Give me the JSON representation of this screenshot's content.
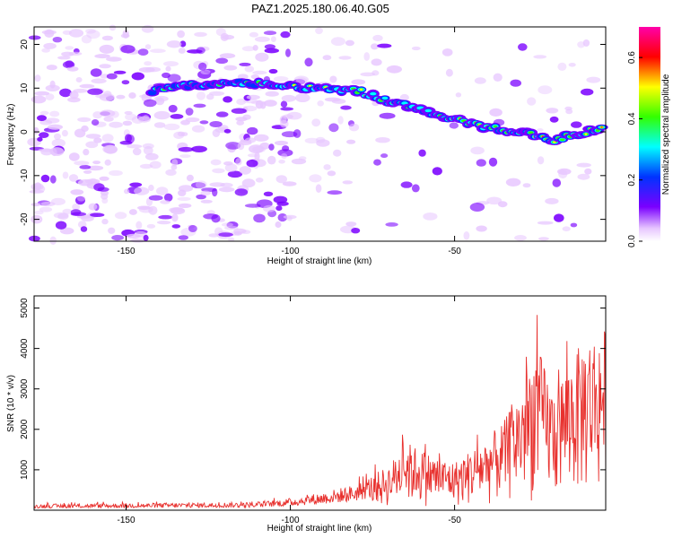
{
  "title": "PAZ1.2025.180.06.40.G05",
  "chart_data": [
    {
      "type": "heatmap",
      "xlabel": "Height of straight line (km)",
      "ylabel": "Frequency (Hz)",
      "xlim": [
        -178,
        -4
      ],
      "ylim": [
        -25,
        24
      ],
      "x_ticks": [
        -150,
        -100,
        -50
      ],
      "y_ticks": [
        -20,
        -10,
        0,
        10,
        20
      ],
      "colorbar": {
        "label": "Normalized spectral amplitude",
        "range": [
          0,
          0.7
        ],
        "ticks": [
          "0.0",
          "0.2",
          "0.4",
          "0.6"
        ]
      },
      "ridge": [
        {
          "x": -140,
          "y": 9.5
        },
        {
          "x": -130,
          "y": 10.5
        },
        {
          "x": -120,
          "y": 11
        },
        {
          "x": -110,
          "y": 11
        },
        {
          "x": -100,
          "y": 10.5
        },
        {
          "x": -90,
          "y": 10
        },
        {
          "x": -80,
          "y": 9.5
        },
        {
          "x": -70,
          "y": 7
        },
        {
          "x": -60,
          "y": 5
        },
        {
          "x": -50,
          "y": 3
        },
        {
          "x": -40,
          "y": 1
        },
        {
          "x": -30,
          "y": 0
        },
        {
          "x": -20,
          "y": -2
        },
        {
          "x": -10,
          "y": 0
        },
        {
          "x": -4,
          "y": 1.5
        }
      ],
      "colors": [
        "#e7c6ff",
        "#7a00ff",
        "#0033ff",
        "#00ffff",
        "#33ff00",
        "#ffff00",
        "#ff0000",
        "#ff00aa"
      ]
    },
    {
      "type": "line",
      "xlabel": "Height of straight line (km)",
      "ylabel": "SNR (10 * v/v)",
      "xlim": [
        -178,
        -4
      ],
      "ylim": [
        0,
        5300
      ],
      "x_ticks": [
        -150,
        -100,
        -50
      ],
      "y_ticks": [
        1000,
        2000,
        3000,
        4000,
        5000
      ],
      "line_color": "#e8312e",
      "envelope": [
        {
          "x": -178,
          "y": 150
        },
        {
          "x": -140,
          "y": 180
        },
        {
          "x": -110,
          "y": 200
        },
        {
          "x": -100,
          "y": 300
        },
        {
          "x": -90,
          "y": 450
        },
        {
          "x": -80,
          "y": 650
        },
        {
          "x": -70,
          "y": 1100
        },
        {
          "x": -65,
          "y": 1700
        },
        {
          "x": -60,
          "y": 1500
        },
        {
          "x": -55,
          "y": 1300
        },
        {
          "x": -50,
          "y": 1200
        },
        {
          "x": -45,
          "y": 1500
        },
        {
          "x": -40,
          "y": 1800
        },
        {
          "x": -35,
          "y": 2200
        },
        {
          "x": -30,
          "y": 3000
        },
        {
          "x": -25,
          "y": 4100
        },
        {
          "x": -20,
          "y": 3000
        },
        {
          "x": -15,
          "y": 3700
        },
        {
          "x": -10,
          "y": 4300
        },
        {
          "x": -4,
          "y": 4500
        }
      ]
    }
  ]
}
